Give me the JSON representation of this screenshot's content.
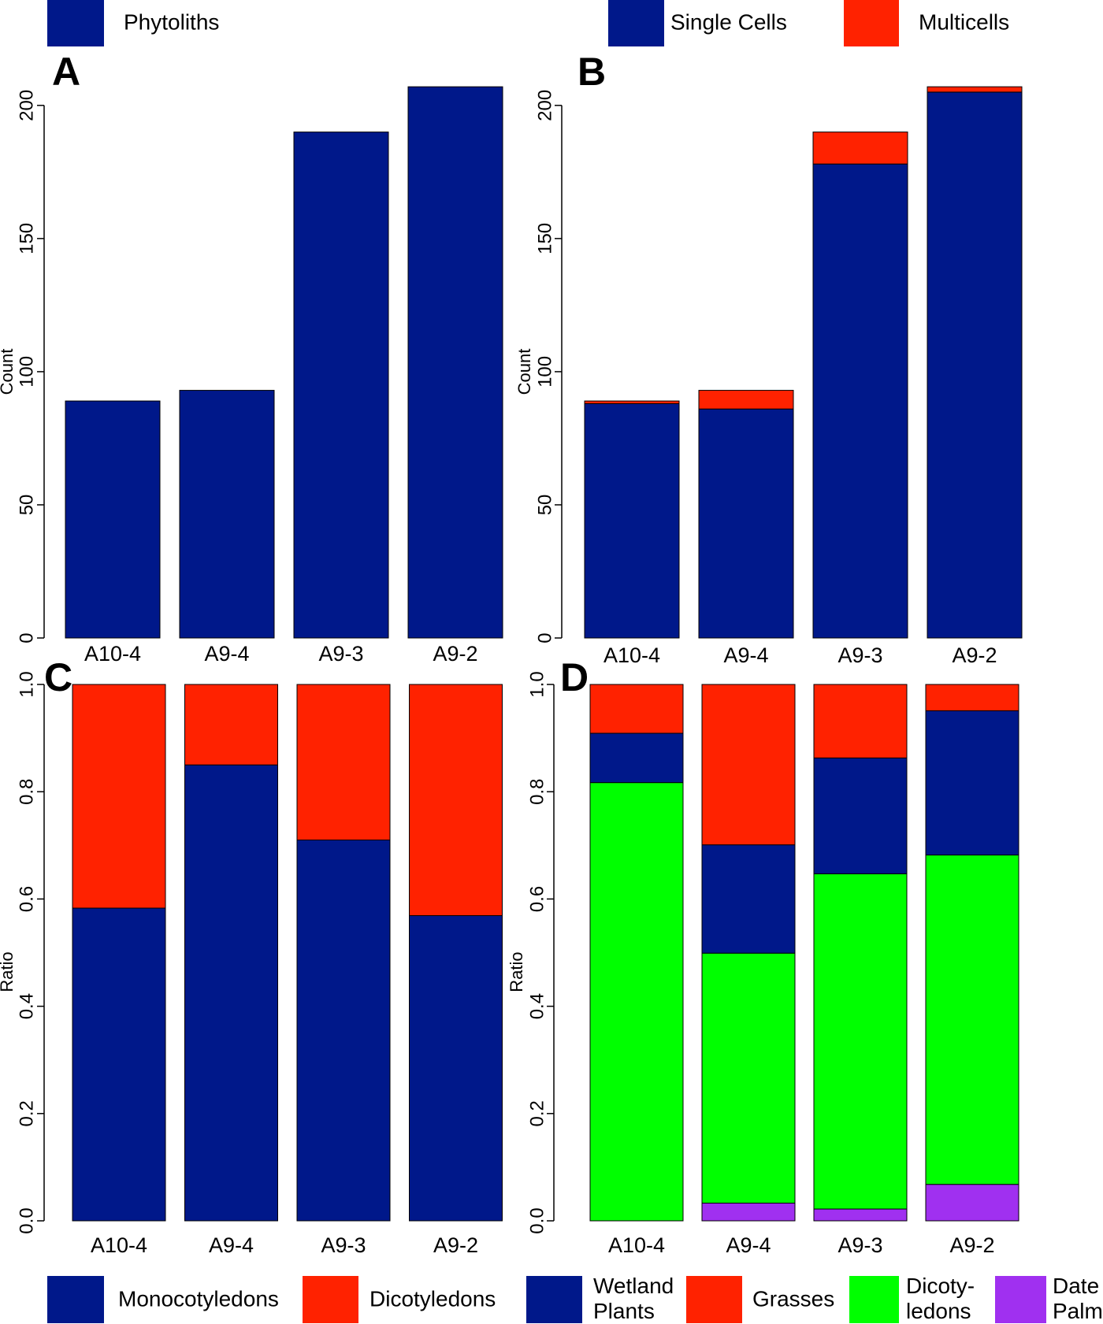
{
  "chart_data": [
    {
      "type": "bar",
      "panel": "A",
      "ylabel": "Count",
      "categories": [
        "A10-4",
        "A9-4",
        "A9-3",
        "A9-2"
      ],
      "series": [
        {
          "name": "Phytoliths",
          "color": "#00188a",
          "values": [
            89,
            93,
            190,
            207
          ]
        }
      ],
      "ylim": [
        0,
        210
      ],
      "yticks": [
        0,
        50,
        100,
        150,
        200
      ]
    },
    {
      "type": "bar",
      "panel": "B",
      "ylabel": "Count",
      "stacked": true,
      "categories": [
        "A10-4",
        "A9-4",
        "A9-3",
        "A9-2"
      ],
      "series": [
        {
          "name": "Single Cells",
          "color": "#00188a",
          "values": [
            88,
            86,
            178,
            205
          ]
        },
        {
          "name": "Multicells",
          "color": "#ff2200",
          "values": [
            1,
            7,
            12,
            2
          ]
        }
      ],
      "ylim": [
        0,
        210
      ],
      "yticks": [
        0,
        50,
        100,
        150,
        200
      ]
    },
    {
      "type": "bar",
      "panel": "C",
      "ylabel": "Ratio",
      "stacked": true,
      "categories": [
        "A10-4",
        "A9-4",
        "A9-3",
        "A9-2"
      ],
      "series": [
        {
          "name": "Monocotyledons",
          "color": "#00188a",
          "values": [
            0.583,
            0.85,
            0.71,
            0.569
          ]
        },
        {
          "name": "Dicotyledons",
          "color": "#ff2200",
          "values": [
            0.417,
            0.15,
            0.29,
            0.431
          ]
        }
      ],
      "ylim": [
        0,
        1
      ],
      "yticks": [
        {
          "value": 0,
          "label": "0.0"
        },
        0.2,
        0.4,
        0.6,
        0.8,
        {
          "value": 1,
          "label": "1.0"
        }
      ]
    },
    {
      "type": "bar",
      "panel": "D",
      "ylabel": "Ratio",
      "stacked": true,
      "categories": [
        "A10-4",
        "A9-4",
        "A9-3",
        "A9-2"
      ],
      "series": [
        {
          "name": "Wetland\nPlants",
          "color": "#00188a",
          "values": [
            0.092,
            0.202,
            0.216,
            0.269
          ]
        },
        {
          "name": "Grasses",
          "color": "#ff2200",
          "values": [
            0.091,
            0.299,
            0.137,
            0.049
          ]
        },
        {
          "name": "Dicoty-\nledons",
          "color": "#00ff00",
          "values": [
            0.817,
            0.466,
            0.625,
            0.614
          ]
        },
        {
          "name": "Date\nPalm",
          "color": "#a030f0",
          "values": [
            0,
            0.033,
            0.022,
            0.068
          ]
        }
      ],
      "ylim": [
        0,
        1
      ],
      "yticks": [
        {
          "value": 0,
          "label": "0.0"
        },
        0.2,
        0.4,
        0.6,
        0.8,
        {
          "value": 1,
          "label": "1.0"
        }
      ]
    }
  ]
}
